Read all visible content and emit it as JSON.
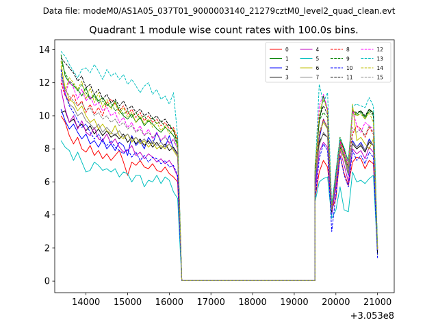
{
  "chart_data": {
    "type": "line",
    "suptitle": "Data file: modeM0/AS1A05_037T01_9000003140_21279cztM0_level2_quad_clean.evt",
    "title": "Quadrant 1 module wise count rates with 100.0s bins.",
    "xlabel": "",
    "ylabel": "",
    "x_offset_label": "+3.053e8",
    "xlim": [
      13250,
      21400
    ],
    "ylim": [
      -0.7,
      14.6
    ],
    "xticks": [
      14000,
      15000,
      16000,
      17000,
      18000,
      19000,
      20000,
      21000
    ],
    "yticks": [
      0,
      2,
      4,
      6,
      8,
      10,
      12,
      14
    ],
    "legend_position": "upper-right",
    "segments": [
      {
        "start": 13400,
        "end": 16200,
        "step": 100
      },
      {
        "start": 16200,
        "end": 16300,
        "step": 100
      },
      {
        "start": 16300,
        "end": 19500,
        "step": 100
      },
      {
        "start": 19500,
        "end": 21000,
        "step": 100
      }
    ],
    "gap_value": 0.03,
    "series": [
      {
        "name": "0",
        "color": "#ff0000",
        "dash": "solid",
        "seg1": [
          10.0,
          9.6,
          8.8,
          8.3,
          8.7,
          8.0,
          7.8,
          8.2,
          7.6,
          7.9,
          7.4,
          7.7,
          7.3,
          7.6,
          7.9,
          7.2,
          6.4,
          7.2,
          7.0,
          7.3,
          6.9,
          6.8,
          7.1,
          6.7,
          6.6,
          6.9,
          6.5,
          6.3,
          6.0
        ],
        "seg3": [
          5.0,
          6.6,
          7.3,
          6.9,
          4.3,
          5.0,
          7.6,
          6.5,
          5.8,
          7.2,
          7.5,
          7.4,
          6.8,
          7.3,
          7.1,
          2.0
        ]
      },
      {
        "name": "1",
        "color": "#008000",
        "dash": "solid",
        "seg1": [
          13.7,
          12.4,
          12.0,
          11.8,
          11.6,
          11.2,
          11.7,
          11.0,
          11.3,
          10.9,
          11.1,
          10.7,
          10.5,
          10.9,
          10.3,
          10.0,
          9.8,
          10.1,
          9.6,
          9.9,
          9.4,
          9.7,
          9.5,
          9.2,
          9.0,
          9.3,
          9.1,
          8.8,
          8.2
        ],
        "seg3": [
          7.0,
          9.6,
          11.2,
          10.4,
          4.4,
          6.5,
          8.6,
          7.9,
          7.3,
          10.3,
          10.1,
          10.3,
          9.9,
          10.4,
          10.2,
          2.0
        ]
      },
      {
        "name": "2",
        "color": "#0000ff",
        "dash": "solid",
        "seg1": [
          10.4,
          9.7,
          9.2,
          9.5,
          9.0,
          8.6,
          8.9,
          8.3,
          8.5,
          8.1,
          8.6,
          8.0,
          8.3,
          7.9,
          8.4,
          8.2,
          7.6,
          8.8,
          8.2,
          8.5,
          8.0,
          8.7,
          8.3,
          9.0,
          8.4,
          8.1,
          8.8,
          8.0,
          7.6
        ],
        "seg3": [
          5.6,
          8.6,
          9.8,
          9.2,
          4.0,
          5.8,
          8.3,
          7.4,
          6.4,
          8.5,
          8.1,
          8.4,
          7.9,
          8.6,
          8.2,
          1.8
        ]
      },
      {
        "name": "3",
        "color": "#000000",
        "dash": "solid",
        "seg1": [
          10.2,
          10.3,
          9.6,
          9.8,
          9.3,
          9.5,
          9.1,
          9.4,
          8.9,
          9.2,
          8.8,
          9.1,
          8.7,
          8.9,
          8.6,
          8.9,
          8.4,
          8.7,
          8.3,
          8.6,
          8.2,
          8.5,
          8.1,
          8.4,
          8.0,
          8.3,
          7.9,
          8.1,
          7.7
        ],
        "seg3": [
          6.4,
          8.4,
          8.9,
          8.7,
          4.2,
          6.2,
          8.1,
          7.6,
          6.8,
          8.3,
          8.0,
          8.2,
          7.8,
          8.4,
          8.2,
          1.9
        ]
      },
      {
        "name": "4",
        "color": "#bf00bf",
        "dash": "solid",
        "seg1": [
          11.6,
          10.4,
          9.6,
          10.0,
          9.2,
          9.7,
          9.0,
          8.8,
          9.3,
          8.6,
          8.5,
          8.9,
          8.3,
          8.6,
          8.1,
          7.8,
          7.9,
          8.2,
          7.6,
          7.8,
          7.4,
          7.7,
          7.5,
          7.2,
          7.4,
          7.1,
          7.3,
          6.9,
          6.3
        ],
        "seg3": [
          5.3,
          7.8,
          8.4,
          8.1,
          4.1,
          5.6,
          7.9,
          7.0,
          6.0,
          8.0,
          7.7,
          7.9,
          7.4,
          8.1,
          7.8,
          1.9
        ]
      },
      {
        "name": "5",
        "color": "#00bfbf",
        "dash": "solid",
        "seg1": [
          8.5,
          8.1,
          7.9,
          7.3,
          7.8,
          7.2,
          6.6,
          6.7,
          7.2,
          7.0,
          6.7,
          6.8,
          6.6,
          6.8,
          6.3,
          6.6,
          6.5,
          6.0,
          6.4,
          6.4,
          5.7,
          6.1,
          6.0,
          6.4,
          5.9,
          6.3,
          6.1,
          5.4,
          5.0
        ],
        "seg3": [
          4.8,
          6.0,
          6.2,
          6.3,
          3.8,
          4.3,
          5.7,
          4.3,
          4.2,
          6.6,
          6.0,
          6.1,
          5.9,
          6.2,
          6.4,
          1.6
        ]
      },
      {
        "name": "6",
        "color": "#bfbf00",
        "dash": "solid",
        "seg1": [
          13.0,
          11.7,
          11.0,
          10.8,
          10.3,
          10.6,
          10.0,
          9.6,
          9.8,
          9.2,
          9.5,
          9.1,
          8.9,
          9.4,
          8.8,
          8.6,
          8.9,
          8.4,
          8.7,
          8.3,
          8.5,
          8.1,
          8.4,
          8.0,
          8.2,
          8.0,
          8.3,
          7.9,
          7.5
        ],
        "seg3": [
          6.2,
          8.9,
          9.6,
          9.2,
          4.4,
          6.0,
          8.0,
          7.4,
          6.5,
          10.7,
          8.5,
          8.7,
          8.3,
          8.0,
          8.6,
          2.0
        ]
      },
      {
        "name": "7",
        "color": "#808080",
        "dash": "solid",
        "seg1": [
          12.5,
          11.4,
          10.7,
          10.5,
          10.0,
          10.2,
          9.7,
          9.5,
          9.2,
          9.5,
          9.0,
          9.3,
          9.0,
          8.8,
          9.1,
          8.7,
          8.9,
          8.5,
          8.7,
          8.4,
          8.6,
          8.3,
          8.5,
          8.2,
          8.4,
          8.1,
          8.3,
          8.0,
          7.6
        ],
        "seg3": [
          6.1,
          8.2,
          9.0,
          8.7,
          4.3,
          6.0,
          8.2,
          7.5,
          6.6,
          8.4,
          8.1,
          8.3,
          7.9,
          8.5,
          8.2,
          1.9
        ]
      },
      {
        "name": "8",
        "color": "#ff0000",
        "dash": "dashed",
        "seg1": [
          12.0,
          11.2,
          10.9,
          11.3,
          10.6,
          10.9,
          10.2,
          10.7,
          10.1,
          10.5,
          10.0,
          10.8,
          11.0,
          10.7,
          10.3,
          10.6,
          10.1,
          10.4,
          9.9,
          10.2,
          9.7,
          10.0,
          9.6,
          9.8,
          9.4,
          9.6,
          9.2,
          9.3,
          8.6
        ],
        "seg3": [
          6.5,
          8.8,
          9.8,
          9.3,
          4.5,
          6.4,
          8.5,
          7.9,
          7.0,
          8.9,
          9.4,
          9.2,
          8.7,
          9.3,
          8.9,
          2.0
        ]
      },
      {
        "name": "9",
        "color": "#008000",
        "dash": "dashed",
        "seg1": [
          13.3,
          12.6,
          12.1,
          11.9,
          11.5,
          11.9,
          11.4,
          11.0,
          11.2,
          10.8,
          10.9,
          10.6,
          10.8,
          10.3,
          10.5,
          10.1,
          10.3,
          9.9,
          10.2,
          9.8,
          10.0,
          9.6,
          9.9,
          9.5,
          9.7,
          9.3,
          9.5,
          9.1,
          8.5
        ],
        "seg3": [
          6.8,
          9.7,
          10.2,
          9.9,
          4.5,
          6.6,
          8.7,
          8.0,
          7.2,
          10.2,
          10.0,
          10.2,
          9.8,
          10.3,
          10.0,
          2.0
        ]
      },
      {
        "name": "10",
        "color": "#0000ff",
        "dash": "dashed",
        "seg1": [
          12.8,
          11.3,
          10.6,
          10.2,
          9.7,
          9.3,
          9.5,
          9.0,
          8.6,
          8.9,
          8.4,
          8.2,
          8.5,
          8.1,
          7.9,
          7.7,
          8.0,
          7.5,
          7.8,
          7.3,
          7.6,
          7.2,
          7.5,
          7.4,
          7.1,
          7.3,
          6.9,
          7.0,
          6.4
        ],
        "seg3": [
          4.9,
          7.4,
          8.3,
          7.9,
          3.0,
          5.2,
          7.6,
          6.4,
          5.7,
          7.9,
          7.3,
          7.6,
          7.1,
          7.8,
          7.5,
          1.4
        ]
      },
      {
        "name": "11",
        "color": "#000000",
        "dash": "dashed",
        "seg1": [
          13.5,
          13.2,
          12.9,
          12.6,
          12.1,
          12.4,
          11.7,
          11.9,
          11.3,
          11.6,
          11.0,
          11.3,
          10.8,
          11.0,
          10.6,
          10.9,
          10.4,
          10.6,
          10.2,
          10.4,
          10.0,
          10.2,
          9.8,
          10.0,
          9.6,
          9.8,
          9.4,
          9.1,
          8.3
        ],
        "seg3": [
          6.6,
          9.9,
          10.6,
          10.1,
          4.2,
          6.3,
          8.4,
          7.6,
          6.9,
          10.3,
          10.2,
          10.3,
          10.0,
          10.4,
          10.1,
          1.6
        ]
      },
      {
        "name": "12",
        "color": "#ff00ff",
        "dash": "dashed",
        "seg1": [
          12.2,
          11.3,
          12.1,
          11.7,
          11.0,
          11.6,
          10.9,
          11.2,
          10.6,
          10.8,
          10.3,
          10.5,
          10.0,
          10.2,
          9.6,
          9.9,
          9.3,
          9.6,
          9.0,
          9.4,
          8.8,
          9.2,
          8.6,
          9.0,
          8.5,
          8.8,
          8.3,
          8.6,
          8.0
        ],
        "seg3": [
          6.4,
          10.6,
          11.3,
          10.4,
          4.3,
          6.2,
          8.4,
          7.8,
          7.0,
          10.4,
          9.4,
          9.0,
          9.6,
          9.4,
          9.2,
          1.9
        ]
      },
      {
        "name": "13",
        "color": "#00bfbf",
        "dash": "dashed",
        "seg1": [
          13.9,
          13.6,
          13.1,
          12.7,
          12.3,
          12.8,
          12.9,
          12.6,
          13.1,
          12.7,
          12.2,
          12.8,
          12.4,
          12.6,
          12.2,
          12.5,
          11.9,
          12.2,
          11.8,
          11.4,
          11.8,
          12.0,
          11.3,
          11.6,
          11.0,
          11.2,
          10.7,
          11.4,
          8.8
        ],
        "seg3": [
          6.5,
          11.9,
          10.8,
          11.4,
          4.7,
          6.6,
          8.6,
          8.1,
          7.2,
          10.6,
          10.7,
          10.6,
          10.5,
          11.1,
          10.6,
          2.1
        ]
      },
      {
        "name": "14",
        "color": "#bfbf00",
        "dash": "dashed",
        "seg1": [
          13.3,
          11.5,
          12.3,
          12.0,
          11.6,
          12.1,
          11.0,
          11.7,
          10.8,
          11.4,
          10.5,
          11.0,
          10.4,
          10.8,
          10.1,
          10.5,
          9.9,
          10.2,
          9.6,
          10.0,
          9.5,
          9.8,
          9.3,
          9.6,
          9.1,
          9.4,
          8.9,
          9.2,
          8.4
        ],
        "seg3": [
          6.6,
          10.2,
          11.0,
          10.3,
          4.4,
          6.2,
          8.3,
          7.7,
          6.9,
          10.4,
          10.0,
          10.1,
          9.8,
          10.2,
          9.6,
          1.9
        ]
      },
      {
        "name": "15",
        "color": "#808080",
        "dash": "dashed",
        "seg1": [
          12.4,
          11.6,
          11.2,
          10.9,
          10.6,
          10.8,
          10.3,
          10.5,
          10.0,
          10.2,
          9.8,
          10.0,
          9.6,
          9.8,
          9.4,
          9.6,
          9.2,
          9.4,
          9.0,
          9.2,
          8.8,
          9.0,
          8.7,
          8.9,
          8.5,
          8.7,
          8.4,
          8.5,
          8.0
        ],
        "seg3": [
          6.3,
          9.0,
          9.7,
          9.3,
          4.3,
          6.1,
          8.2,
          7.6,
          6.8,
          9.3,
          9.0,
          9.2,
          8.8,
          9.4,
          9.0,
          1.9
        ]
      }
    ]
  }
}
